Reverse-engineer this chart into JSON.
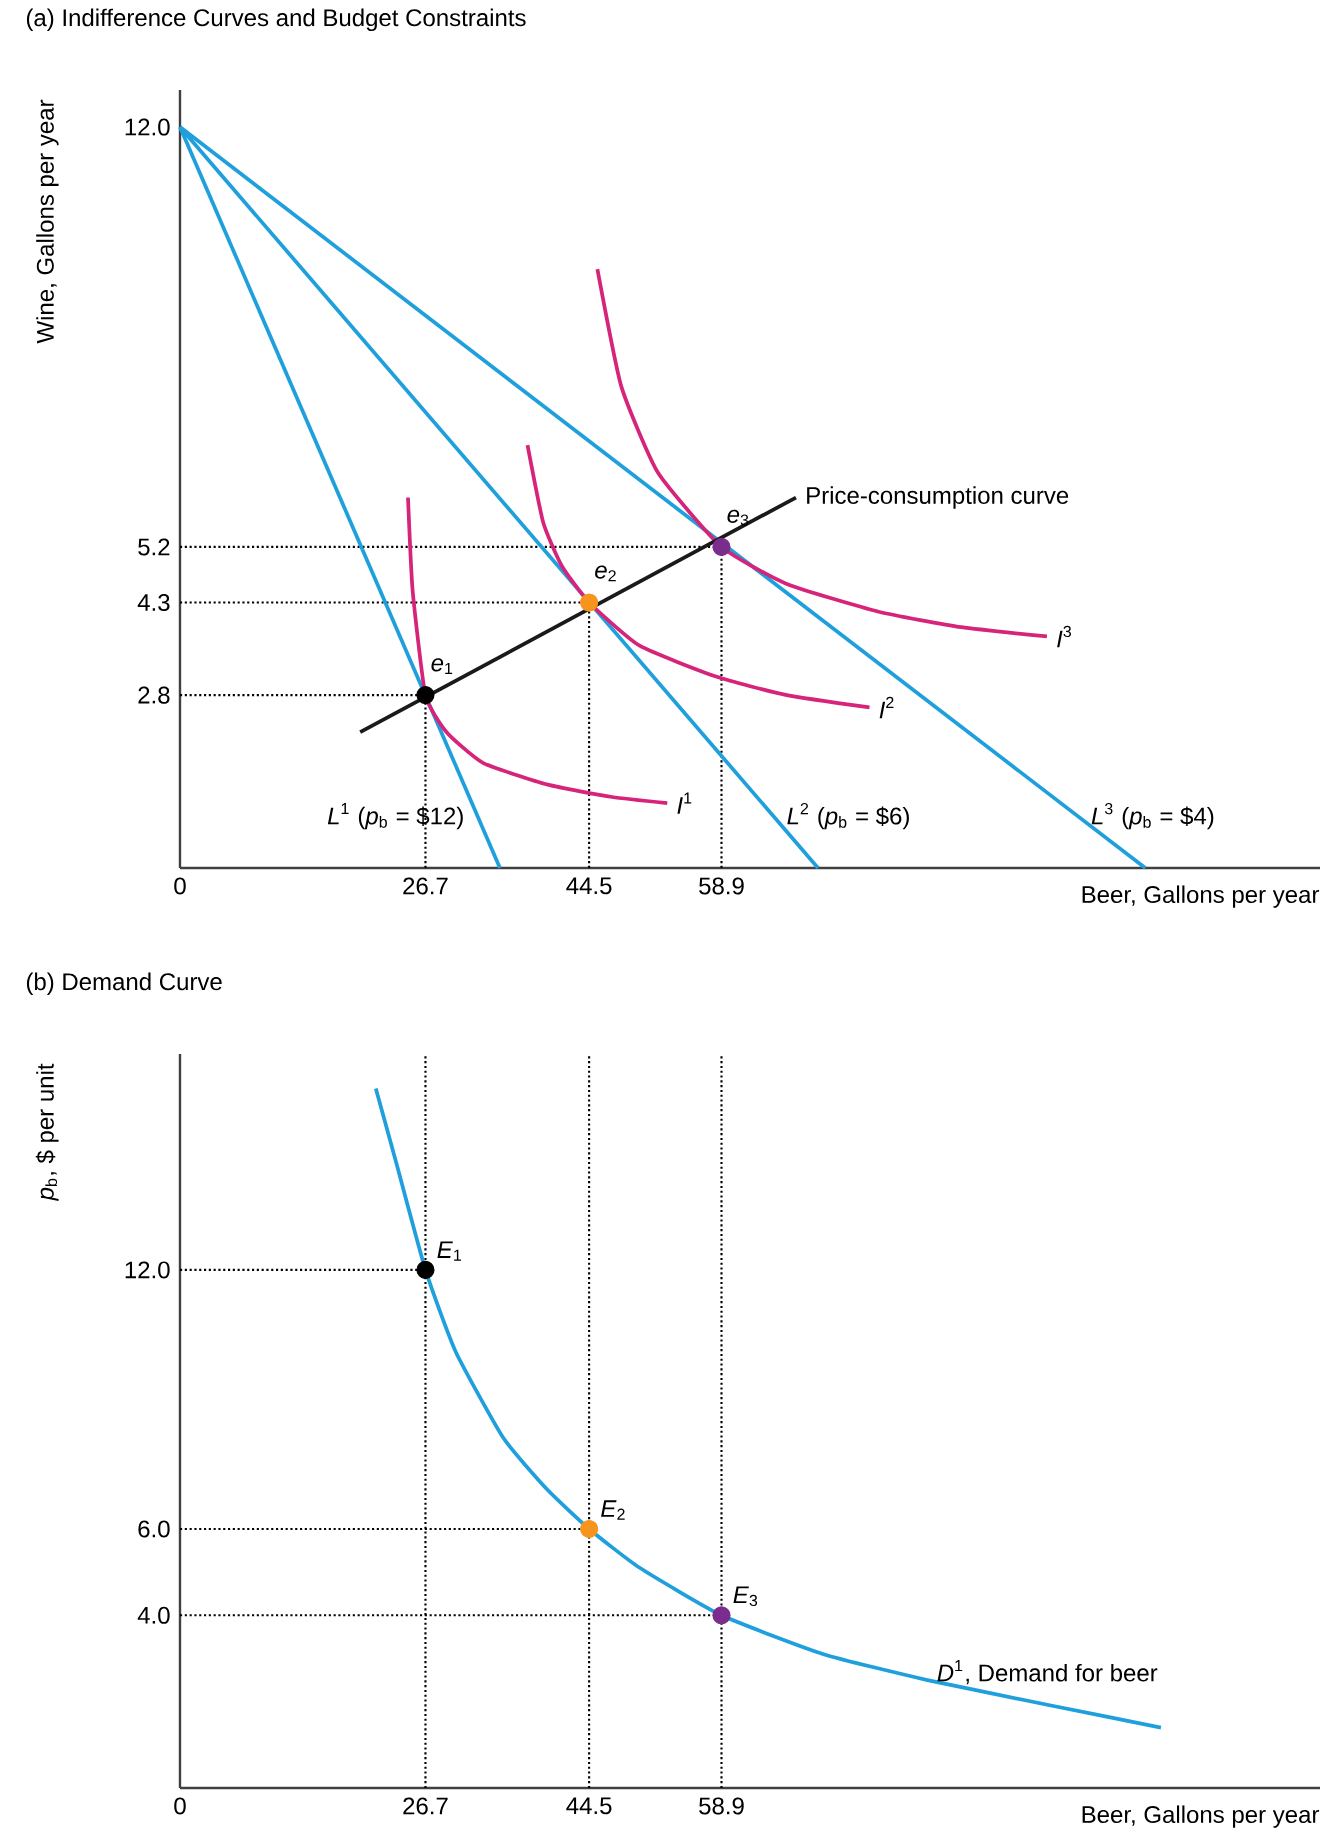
{
  "chart_data": [
    {
      "type": "line",
      "title": "(a) Indifference Curves and Budget Constraints",
      "xlabel": "Beer, Gallons per year",
      "ylabel": "Wine, Gallons per year",
      "xlim": [
        0,
        124
      ],
      "ylim": [
        0,
        12.6
      ],
      "xticks": [
        0,
        26.7,
        44.5,
        58.9
      ],
      "yticks": [
        2.8,
        4.3,
        5.2,
        {
          "value": 12,
          "label": "12.0"
        }
      ],
      "series": [
        {
          "name": "*L*$^{1}$ (*p*$_{b}$ = $12)",
          "color": "#1f9fdc",
          "x": [
            0,
            34.8
          ],
          "values": [
            12,
            0
          ]
        },
        {
          "name": "*L*$^{2}$ (*p*$_{b}$ = $6)",
          "color": "#1f9fdc",
          "x": [
            0,
            69.4
          ],
          "values": [
            12,
            0
          ]
        },
        {
          "name": "*L*$^{3}$ (*p*$_{b}$ = $4)",
          "color": "#1f9fdc",
          "x": [
            0,
            105
          ],
          "values": [
            12,
            0
          ]
        },
        {
          "name": "*I*$^{1}$",
          "color": "#d6247a",
          "x": [
            24.8,
            25.3,
            26.7,
            29,
            33,
            40,
            47,
            53
          ],
          "values": [
            6.0,
            4.5,
            2.8,
            2.2,
            1.7,
            1.35,
            1.15,
            1.05
          ]
        },
        {
          "name": "*I*$^{2}$",
          "color": "#d6247a",
          "x": [
            37.8,
            39.5,
            41.5,
            44.5,
            50,
            58.3,
            66,
            75
          ],
          "values": [
            6.85,
            5.6,
            4.9,
            4.3,
            3.6,
            3.1,
            2.8,
            2.6
          ]
        },
        {
          "name": "*I*$^{3}$",
          "color": "#d6247a",
          "x": [
            45.4,
            48,
            52,
            58.9,
            66,
            76,
            85,
            94.3
          ],
          "values": [
            9.7,
            7.8,
            6.4,
            5.2,
            4.6,
            4.15,
            3.9,
            3.75
          ]
        },
        {
          "name": "Price-consumption curve",
          "color": "#1a1a1a",
          "x": [
            19.6,
            67
          ],
          "values": [
            2.2,
            6.0
          ]
        },
        {
          "type": "scatter",
          "marker": "circle",
          "colors": [
            "#000000",
            "#f7941d",
            "#7b2d8e"
          ],
          "x": [
            26.7,
            44.5,
            58.9
          ],
          "values": [
            2.8,
            4.3,
            5.2
          ]
        }
      ],
      "ref_lines": [
        {
          "axis": "y",
          "value": 2.8,
          "line_style": "dotted",
          "color": "#000000"
        },
        {
          "axis": "y",
          "value": 4.3,
          "line_style": "dotted",
          "color": "#000000"
        },
        {
          "axis": "y",
          "value": 5.2,
          "line_style": "dotted",
          "color": "#000000"
        },
        {
          "axis": "x",
          "value": 26.7,
          "line_style": "dotted",
          "color": "#000000"
        },
        {
          "axis": "x",
          "value": 44.5,
          "line_style": "dotted",
          "color": "#000000"
        },
        {
          "axis": "x",
          "value": 58.9,
          "line_style": "dotted",
          "color": "#000000"
        }
      ],
      "annotations": [
        {
          "text": "*e*$_{1}$",
          "x": 26.7,
          "y": 2.8
        },
        {
          "text": "*e*$_{2}$",
          "x": 44.5,
          "y": 4.3
        },
        {
          "text": "*e*$_{3}$",
          "x": 58.9,
          "y": 5.2
        }
      ]
    },
    {
      "type": "line",
      "title": "(b) Demand Curve",
      "xlabel": "Beer, Gallons per year",
      "ylabel": "*p*$_{b}$, $ per unit",
      "xlim": [
        0,
        124
      ],
      "ylim": [
        0,
        17
      ],
      "xticks": [
        0,
        26.7,
        44.5,
        58.9
      ],
      "yticks": [
        {
          "value": 4,
          "label": "4.0"
        },
        {
          "value": 6,
          "label": "6.0"
        },
        {
          "value": 12,
          "label": "12.0"
        }
      ],
      "series": [
        {
          "name": "*D*$^{1}$, Demand for beer",
          "color": "#1f9fdc",
          "x": [
            21.3,
            23.5,
            26.7,
            30,
            35.2,
            40,
            44.5,
            50,
            58.9,
            70,
            81.3,
            95,
            106.7
          ],
          "values": [
            16.2,
            14.5,
            12,
            10.1,
            8.1,
            6.9,
            6,
            5.1,
            4,
            3.1,
            2.5,
            1.9,
            1.4
          ]
        },
        {
          "type": "scatter",
          "marker": "circle",
          "colors": [
            "#000000",
            "#f7941d",
            "#7b2d8e"
          ],
          "x": [
            26.7,
            44.5,
            58.9
          ],
          "values": [
            12,
            6,
            4
          ]
        }
      ],
      "ref_lines": [
        {
          "axis": "y",
          "value": 4,
          "line_style": "dotted",
          "color": "#000000"
        },
        {
          "axis": "y",
          "value": 6,
          "line_style": "dotted",
          "color": "#000000"
        },
        {
          "axis": "y",
          "value": 12,
          "line_style": "dotted",
          "color": "#000000"
        },
        {
          "axis": "x",
          "value": 26.7,
          "line_style": "dotted",
          "color": "#000000"
        },
        {
          "axis": "x",
          "value": 44.5,
          "line_style": "dotted",
          "color": "#000000"
        },
        {
          "axis": "x",
          "value": 58.9,
          "line_style": "dotted",
          "color": "#000000"
        }
      ],
      "annotations": [
        {
          "text": "*E*$_{1}$",
          "x": 26.7,
          "y": 12
        },
        {
          "text": "*E*$_{2}$",
          "x": 44.5,
          "y": 6
        },
        {
          "text": "*E*$_{3}$",
          "x": 58.9,
          "y": 4
        }
      ]
    }
  ]
}
